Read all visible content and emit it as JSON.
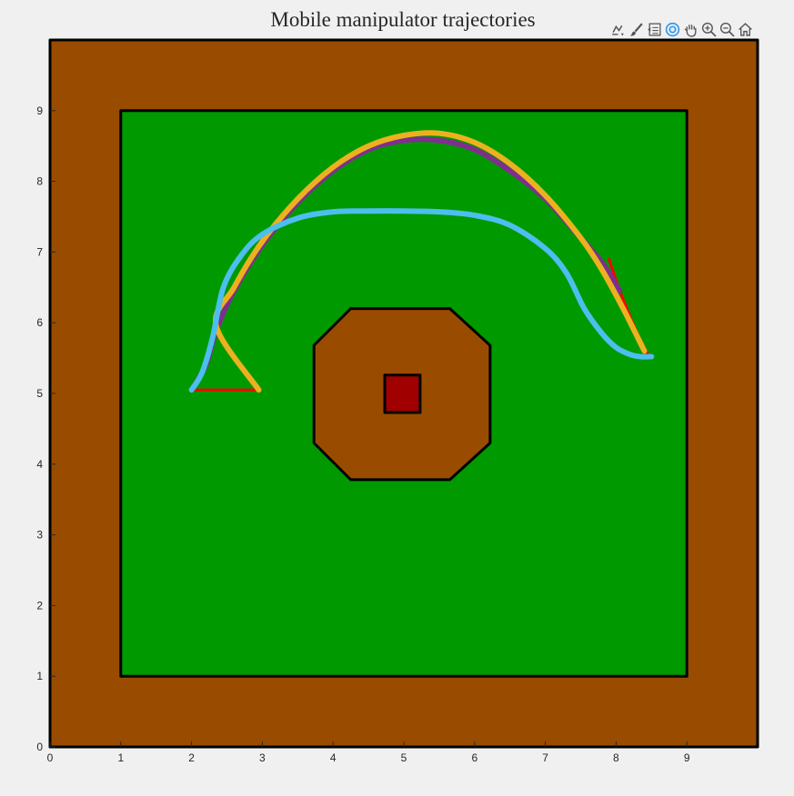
{
  "chart_data": {
    "type": "line",
    "title": "Mobile manipulator trajectories",
    "xlabel": "",
    "ylabel": "",
    "xlim": [
      0,
      10
    ],
    "ylim": [
      0,
      10
    ],
    "x_ticks": [
      "0",
      "1",
      "2",
      "3",
      "4",
      "5",
      "6",
      "7",
      "8",
      "9"
    ],
    "y_ticks": [
      "0",
      "1",
      "2",
      "3",
      "4",
      "5",
      "6",
      "7",
      "8",
      "9"
    ],
    "grid": false,
    "legend": "none",
    "regions": [
      {
        "shape": "outer-boundary",
        "color": "#994c00",
        "points": [
          [
            0,
            0
          ],
          [
            10,
            0
          ],
          [
            10,
            10
          ],
          [
            0,
            10
          ]
        ]
      },
      {
        "shape": "ground",
        "color": "#009900",
        "points": [
          [
            1,
            1
          ],
          [
            9,
            1
          ],
          [
            9,
            9
          ],
          [
            1,
            9
          ]
        ]
      },
      {
        "shape": "central-octagon",
        "color": "#994c00",
        "points": [
          [
            4.25,
            3.78
          ],
          [
            5.65,
            3.78
          ],
          [
            6.22,
            4.3
          ],
          [
            6.22,
            5.68
          ],
          [
            5.65,
            6.2
          ],
          [
            4.25,
            6.2
          ],
          [
            3.73,
            5.68
          ],
          [
            3.73,
            4.3
          ]
        ]
      },
      {
        "shape": "target-block",
        "color": "#a00000",
        "points": [
          [
            4.73,
            4.73
          ],
          [
            5.23,
            4.73
          ],
          [
            5.23,
            5.26
          ],
          [
            4.73,
            5.26
          ]
        ]
      }
    ],
    "series": [
      {
        "color": "#ff0000",
        "x": [
          2.0,
          2.95
        ],
        "y": [
          5.05,
          5.05
        ]
      },
      {
        "color": "#ff0000",
        "x": [
          7.9,
          8.0,
          8.15,
          8.3,
          8.45
        ],
        "y": [
          6.9,
          6.6,
          6.2,
          5.85,
          5.55
        ]
      },
      {
        "color": "#7e2f8e",
        "x": [
          2.0,
          2.2,
          2.35,
          2.6,
          3.0,
          3.5,
          4.0,
          4.5,
          5.0,
          5.5,
          6.0,
          6.5,
          7.0,
          7.5,
          7.8,
          8.05
        ],
        "y": [
          5.05,
          5.4,
          5.9,
          6.45,
          7.1,
          7.7,
          8.15,
          8.45,
          8.58,
          8.58,
          8.45,
          8.15,
          7.75,
          7.2,
          6.85,
          6.45
        ]
      },
      {
        "color": "#edb120",
        "x": [
          2.95,
          2.35,
          2.6,
          3.0,
          3.5,
          4.0,
          4.5,
          5.0,
          5.5,
          6.0,
          6.5,
          7.0,
          7.5,
          7.8,
          8.1,
          8.4
        ],
        "y": [
          5.05,
          5.95,
          6.5,
          7.15,
          7.75,
          8.2,
          8.5,
          8.65,
          8.68,
          8.55,
          8.25,
          7.8,
          7.2,
          6.75,
          6.2,
          5.6
        ]
      },
      {
        "color": "#4dbeee",
        "x": [
          2.0,
          2.15,
          2.3,
          2.45,
          2.7,
          3.0,
          3.5,
          4.0,
          4.5,
          5.0,
          5.5,
          6.0,
          6.5,
          7.0,
          7.3,
          7.55,
          7.8,
          8.0,
          8.2,
          8.35,
          8.5
        ],
        "y": [
          5.05,
          5.3,
          5.8,
          6.5,
          6.95,
          7.25,
          7.48,
          7.57,
          7.58,
          7.58,
          7.57,
          7.52,
          7.38,
          7.05,
          6.7,
          6.2,
          5.85,
          5.65,
          5.55,
          5.52,
          5.52
        ]
      }
    ]
  },
  "toolbar": [
    {
      "icon": "data-tips-icon"
    },
    {
      "icon": "brush-icon"
    },
    {
      "icon": "legend-icon"
    },
    {
      "icon": "rotate-icon"
    },
    {
      "icon": "pan-icon"
    },
    {
      "icon": "zoom-in-icon"
    },
    {
      "icon": "zoom-out-icon"
    },
    {
      "icon": "home-icon"
    }
  ]
}
